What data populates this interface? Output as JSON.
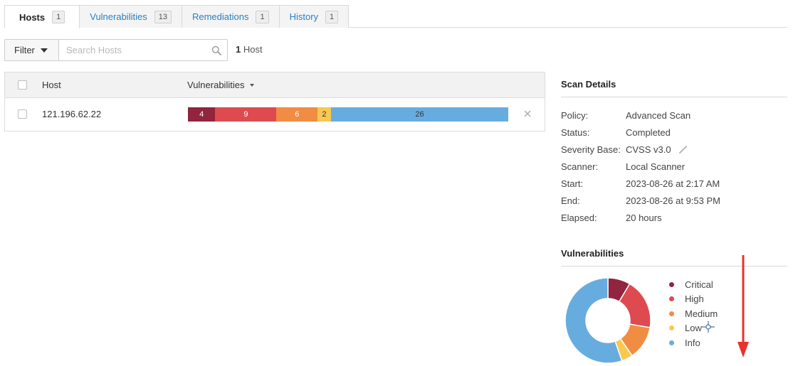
{
  "tabs": [
    {
      "label": "Hosts",
      "count": "1"
    },
    {
      "label": "Vulnerabilities",
      "count": "13"
    },
    {
      "label": "Remediations",
      "count": "1"
    },
    {
      "label": "History",
      "count": "1"
    }
  ],
  "filter": {
    "label": "Filter",
    "search_placeholder": "Search Hosts",
    "count_number": "1",
    "count_label": "Host"
  },
  "table": {
    "headers": {
      "host": "Host",
      "vulnerabilities": "Vulnerabilities"
    },
    "rows": [
      {
        "host": "121.196.62.22",
        "critical": 4,
        "high": 9,
        "medium": 6,
        "low": 2,
        "info": 26
      }
    ]
  },
  "scan_details": {
    "title": "Scan Details",
    "policy_label": "Policy:",
    "policy": "Advanced Scan",
    "status_label": "Status:",
    "status": "Completed",
    "severity_label": "Severity Base:",
    "severity": "CVSS v3.0",
    "scanner_label": "Scanner:",
    "scanner": "Local Scanner",
    "start_label": "Start:",
    "start": "2023-08-26 at 2:17 AM",
    "end_label": "End:",
    "end": "2023-08-26 at 9:53 PM",
    "elapsed_label": "Elapsed:",
    "elapsed": "20 hours"
  },
  "vulnerabilities_panel": {
    "title": "Vulnerabilities",
    "legend": [
      "Critical",
      "High",
      "Medium",
      "Low",
      "Info"
    ]
  },
  "colors": {
    "critical": "#91243e",
    "high": "#dd4b50",
    "medium": "#f18c43",
    "low": "#f8c851",
    "info": "#67acdf",
    "link": "#2a7fc0",
    "arrow": "#e8332b"
  },
  "icons": [
    "caret-down-icon",
    "search-icon",
    "sort-caret-icon",
    "close-icon",
    "pencil-icon",
    "crosshair-cursor-icon",
    "red-arrow-icon"
  ]
}
